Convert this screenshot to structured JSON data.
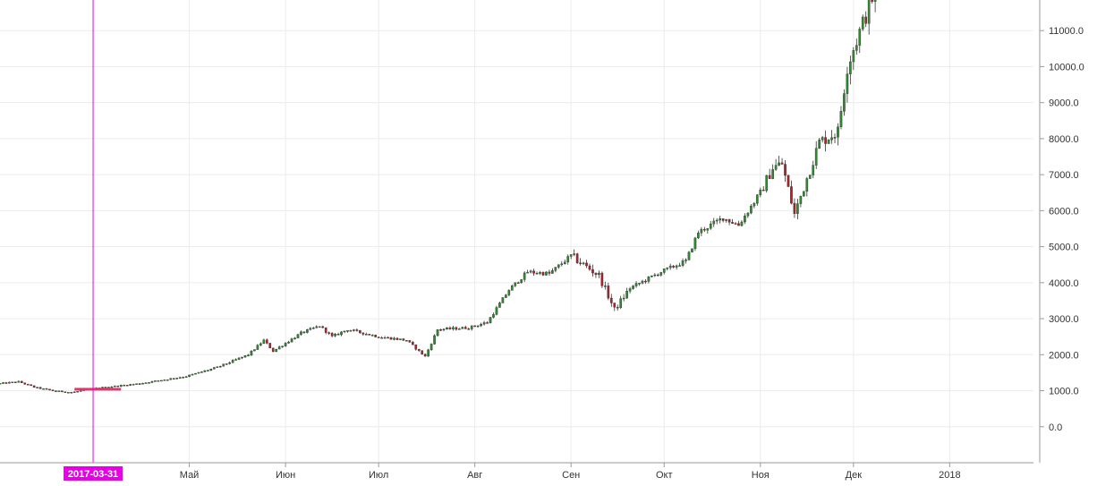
{
  "chart_data": {
    "type": "candlestick",
    "x_tick_labels": [
      "Май",
      "Июн",
      "Июл",
      "Авг",
      "Сен",
      "Окт",
      "Ноя",
      "Дек",
      "2018"
    ],
    "y_tick_labels": [
      "0.0",
      "1000.0",
      "2000.0",
      "3000.0",
      "4000.0",
      "5000.0",
      "6000.0",
      "7000.0",
      "8000.0",
      "9000.0",
      "10000.0",
      "11000.0"
    ],
    "ylim": [
      -1000,
      11850
    ],
    "xlim": [
      "2017-03-01",
      "2018-01-28"
    ],
    "grid": true,
    "cursor": {
      "date": "2017-03-31",
      "label": "2017-03-31",
      "color": "#e600e6"
    },
    "level_line": {
      "value": 1040,
      "from": "2017-03-25",
      "to": "2017-04-09",
      "color": "#e8336f"
    },
    "colors": {
      "up": "#2e8b2e",
      "down": "#b0202a",
      "grid": "#ececec",
      "axis": "#9a9a9a"
    },
    "anchors": [
      [
        "2017-03-01",
        1200
      ],
      [
        "2017-03-07",
        1250
      ],
      [
        "2017-03-12",
        1100
      ],
      [
        "2017-03-18",
        1000
      ],
      [
        "2017-03-24",
        950
      ],
      [
        "2017-03-31",
        1060
      ],
      [
        "2017-04-15",
        1200
      ],
      [
        "2017-04-30",
        1400
      ],
      [
        "2017-05-10",
        1650
      ],
      [
        "2017-05-20",
        2000
      ],
      [
        "2017-05-25",
        2400
      ],
      [
        "2017-05-28",
        2100
      ],
      [
        "2017-06-06",
        2600
      ],
      [
        "2017-06-12",
        2800
      ],
      [
        "2017-06-16",
        2500
      ],
      [
        "2017-06-21",
        2700
      ],
      [
        "2017-07-01",
        2500
      ],
      [
        "2017-07-10",
        2400
      ],
      [
        "2017-07-16",
        1950
      ],
      [
        "2017-07-20",
        2700
      ],
      [
        "2017-07-30",
        2750
      ],
      [
        "2017-08-05",
        2900
      ],
      [
        "2017-08-12",
        3800
      ],
      [
        "2017-08-18",
        4300
      ],
      [
        "2017-08-25",
        4250
      ],
      [
        "2017-09-01",
        4750
      ],
      [
        "2017-09-05",
        4500
      ],
      [
        "2017-09-10",
        4200
      ],
      [
        "2017-09-15",
        3250
      ],
      [
        "2017-09-20",
        3850
      ],
      [
        "2017-09-30",
        4300
      ],
      [
        "2017-10-08",
        4600
      ],
      [
        "2017-10-12",
        5400
      ],
      [
        "2017-10-20",
        5800
      ],
      [
        "2017-10-25",
        5600
      ],
      [
        "2017-11-01",
        6500
      ],
      [
        "2017-11-05",
        7200
      ],
      [
        "2017-11-08",
        7300
      ],
      [
        "2017-11-12",
        5900
      ],
      [
        "2017-11-20",
        7900
      ],
      [
        "2017-11-26",
        8200
      ],
      [
        "2017-11-29",
        10000
      ],
      [
        "2017-12-01",
        10500
      ],
      [
        "2017-12-07",
        11900
      ]
    ]
  }
}
